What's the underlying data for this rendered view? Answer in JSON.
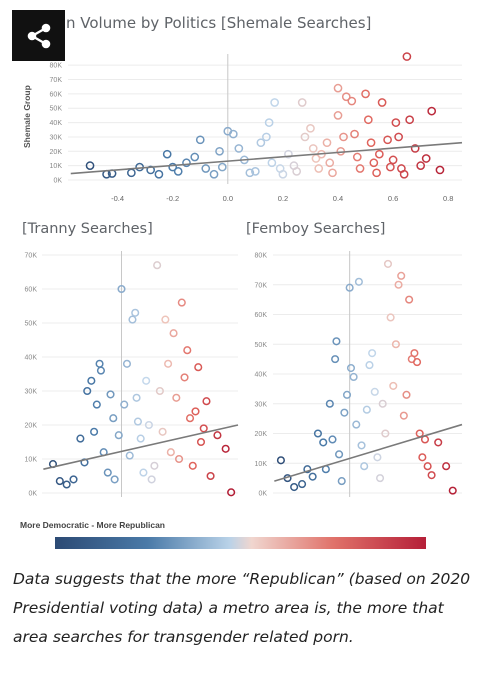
{
  "share_button": {
    "icon": "share-icon"
  },
  "chart_data": [
    {
      "type": "scatter",
      "title": "n Volume by Politics [Shemale Searches]",
      "ylabel": "Shemale Group",
      "xlabel": "",
      "xlim": [
        -0.58,
        0.85
      ],
      "ylim": [
        0,
        85000
      ],
      "xticks": [
        "-0.4",
        "-0.2",
        "0.0",
        "0.2",
        "0.4",
        "0.6",
        "0.8"
      ],
      "yticks": [
        "0K",
        "10K",
        "20K",
        "30K",
        "40K",
        "50K",
        "60K",
        "70K",
        "80K"
      ],
      "grid": true,
      "trendline": {
        "x": [
          -0.57,
          0.85
        ],
        "y": [
          4500,
          26000
        ]
      },
      "points": [
        [
          -0.5,
          10000
        ],
        [
          -0.44,
          4000
        ],
        [
          -0.42,
          4500
        ],
        [
          -0.35,
          5000
        ],
        [
          -0.32,
          9000
        ],
        [
          -0.28,
          7000
        ],
        [
          -0.25,
          4000
        ],
        [
          -0.22,
          18000
        ],
        [
          -0.2,
          9000
        ],
        [
          -0.18,
          6000
        ],
        [
          -0.15,
          12000
        ],
        [
          -0.12,
          16000
        ],
        [
          -0.1,
          28000
        ],
        [
          -0.08,
          8000
        ],
        [
          -0.05,
          4000
        ],
        [
          -0.03,
          20000
        ],
        [
          0.0,
          34000
        ],
        [
          0.02,
          32000
        ],
        [
          -0.02,
          9000
        ],
        [
          0.04,
          22000
        ],
        [
          0.06,
          14000
        ],
        [
          0.08,
          5000
        ],
        [
          0.1,
          6000
        ],
        [
          0.12,
          26000
        ],
        [
          0.14,
          30000
        ],
        [
          0.15,
          40000
        ],
        [
          0.17,
          54000
        ],
        [
          0.16,
          12000
        ],
        [
          0.19,
          8000
        ],
        [
          0.2,
          4000
        ],
        [
          0.22,
          18000
        ],
        [
          0.24,
          10000
        ],
        [
          0.25,
          6000
        ],
        [
          0.27,
          54000
        ],
        [
          0.28,
          30000
        ],
        [
          0.3,
          36000
        ],
        [
          0.31,
          22000
        ],
        [
          0.32,
          15000
        ],
        [
          0.33,
          8000
        ],
        [
          0.34,
          18000
        ],
        [
          0.36,
          26000
        ],
        [
          0.37,
          12000
        ],
        [
          0.38,
          5000
        ],
        [
          0.4,
          64000
        ],
        [
          0.4,
          45000
        ],
        [
          0.41,
          20000
        ],
        [
          0.42,
          30000
        ],
        [
          0.43,
          58000
        ],
        [
          0.45,
          55000
        ],
        [
          0.46,
          32000
        ],
        [
          0.47,
          16000
        ],
        [
          0.48,
          8000
        ],
        [
          0.5,
          60000
        ],
        [
          0.51,
          42000
        ],
        [
          0.52,
          26000
        ],
        [
          0.53,
          12000
        ],
        [
          0.54,
          5000
        ],
        [
          0.55,
          18000
        ],
        [
          0.56,
          54000
        ],
        [
          0.58,
          28000
        ],
        [
          0.59,
          9000
        ],
        [
          0.6,
          14000
        ],
        [
          0.61,
          40000
        ],
        [
          0.62,
          30000
        ],
        [
          0.63,
          8000
        ],
        [
          0.64,
          4000
        ],
        [
          0.65,
          86000
        ],
        [
          0.66,
          42000
        ],
        [
          0.68,
          22000
        ],
        [
          0.7,
          10000
        ],
        [
          0.72,
          15000
        ],
        [
          0.74,
          48000
        ],
        [
          0.77,
          7000
        ]
      ]
    },
    {
      "type": "scatter",
      "title": "[Tranny Searches]",
      "ylim": [
        0,
        70000
      ],
      "yticks": [
        "0K",
        "10K",
        "20K",
        "30K",
        "40K",
        "50K",
        "60K",
        "70K"
      ],
      "grid": true,
      "trendline": {
        "x": [
          -0.57,
          0.85
        ],
        "y": [
          7000,
          20000
        ]
      },
      "points": [
        [
          -0.5,
          8500
        ],
        [
          -0.45,
          3500
        ],
        [
          -0.4,
          2500
        ],
        [
          -0.35,
          4000
        ],
        [
          -0.3,
          16000
        ],
        [
          -0.27,
          9000
        ],
        [
          -0.25,
          30000
        ],
        [
          -0.22,
          33000
        ],
        [
          -0.2,
          18000
        ],
        [
          -0.18,
          26000
        ],
        [
          -0.16,
          38000
        ],
        [
          -0.15,
          36000
        ],
        [
          -0.13,
          12000
        ],
        [
          -0.1,
          6000
        ],
        [
          -0.08,
          29000
        ],
        [
          -0.06,
          22000
        ],
        [
          -0.05,
          4000
        ],
        [
          -0.02,
          17000
        ],
        [
          0.0,
          60000
        ],
        [
          0.02,
          26000
        ],
        [
          0.04,
          38000
        ],
        [
          0.06,
          11000
        ],
        [
          0.08,
          51000
        ],
        [
          0.1,
          53000
        ],
        [
          0.11,
          28000
        ],
        [
          0.12,
          21000
        ],
        [
          0.14,
          16000
        ],
        [
          0.16,
          6000
        ],
        [
          0.18,
          33000
        ],
        [
          0.2,
          20000
        ],
        [
          0.22,
          4000
        ],
        [
          0.24,
          8000
        ],
        [
          0.26,
          67000
        ],
        [
          0.28,
          30000
        ],
        [
          0.3,
          18000
        ],
        [
          0.32,
          51000
        ],
        [
          0.34,
          38000
        ],
        [
          0.36,
          12000
        ],
        [
          0.38,
          47000
        ],
        [
          0.4,
          28000
        ],
        [
          0.42,
          10000
        ],
        [
          0.44,
          56000
        ],
        [
          0.46,
          34000
        ],
        [
          0.48,
          42000
        ],
        [
          0.5,
          22000
        ],
        [
          0.52,
          8000
        ],
        [
          0.54,
          24000
        ],
        [
          0.56,
          37000
        ],
        [
          0.58,
          15000
        ],
        [
          0.6,
          19000
        ],
        [
          0.62,
          27000
        ],
        [
          0.65,
          5000
        ],
        [
          0.7,
          17000
        ],
        [
          0.76,
          13000
        ],
        [
          0.8,
          200
        ]
      ]
    },
    {
      "type": "scatter",
      "title": "[Femboy Searches]",
      "ylim": [
        0,
        80000
      ],
      "yticks": [
        "0K",
        "10K",
        "20K",
        "30K",
        "40K",
        "50K",
        "60K",
        "70K",
        "80K"
      ],
      "grid": true,
      "trendline": {
        "x": [
          -0.57,
          0.85
        ],
        "y": [
          4000,
          23000
        ]
      },
      "points": [
        [
          -0.52,
          11000
        ],
        [
          -0.47,
          5000
        ],
        [
          -0.42,
          2000
        ],
        [
          -0.36,
          3000
        ],
        [
          -0.32,
          8000
        ],
        [
          -0.28,
          5500
        ],
        [
          -0.24,
          20000
        ],
        [
          -0.2,
          17000
        ],
        [
          -0.18,
          8000
        ],
        [
          -0.15,
          30000
        ],
        [
          -0.13,
          18000
        ],
        [
          -0.11,
          45000
        ],
        [
          -0.1,
          51000
        ],
        [
          -0.08,
          13000
        ],
        [
          -0.06,
          4000
        ],
        [
          -0.04,
          27000
        ],
        [
          -0.02,
          33000
        ],
        [
          0.0,
          69000
        ],
        [
          0.01,
          42000
        ],
        [
          0.03,
          39000
        ],
        [
          0.05,
          23000
        ],
        [
          0.07,
          71000
        ],
        [
          0.09,
          16000
        ],
        [
          0.11,
          9000
        ],
        [
          0.13,
          28000
        ],
        [
          0.15,
          43000
        ],
        [
          0.17,
          47000
        ],
        [
          0.19,
          34000
        ],
        [
          0.21,
          12000
        ],
        [
          0.23,
          5000
        ],
        [
          0.25,
          30000
        ],
        [
          0.27,
          20000
        ],
        [
          0.29,
          77000
        ],
        [
          0.31,
          59000
        ],
        [
          0.33,
          36000
        ],
        [
          0.35,
          50000
        ],
        [
          0.37,
          70000
        ],
        [
          0.39,
          73000
        ],
        [
          0.41,
          26000
        ],
        [
          0.43,
          33000
        ],
        [
          0.45,
          65000
        ],
        [
          0.47,
          45000
        ],
        [
          0.49,
          47000
        ],
        [
          0.51,
          44000
        ],
        [
          0.53,
          20000
        ],
        [
          0.55,
          12000
        ],
        [
          0.57,
          18000
        ],
        [
          0.59,
          9000
        ],
        [
          0.62,
          6000
        ],
        [
          0.67,
          17000
        ],
        [
          0.73,
          9000
        ],
        [
          0.78,
          800
        ]
      ]
    }
  ],
  "legend": {
    "title": "More Democratic - More Republican",
    "colors": [
      "#2c4a74",
      "#b9d2e8",
      "#f0d6cf",
      "#b51f38"
    ]
  },
  "caption": "Data suggests that the more “Republican” (based on 2020 Presidential voting data) a metro area is, the more that area searches for transgender related porn."
}
